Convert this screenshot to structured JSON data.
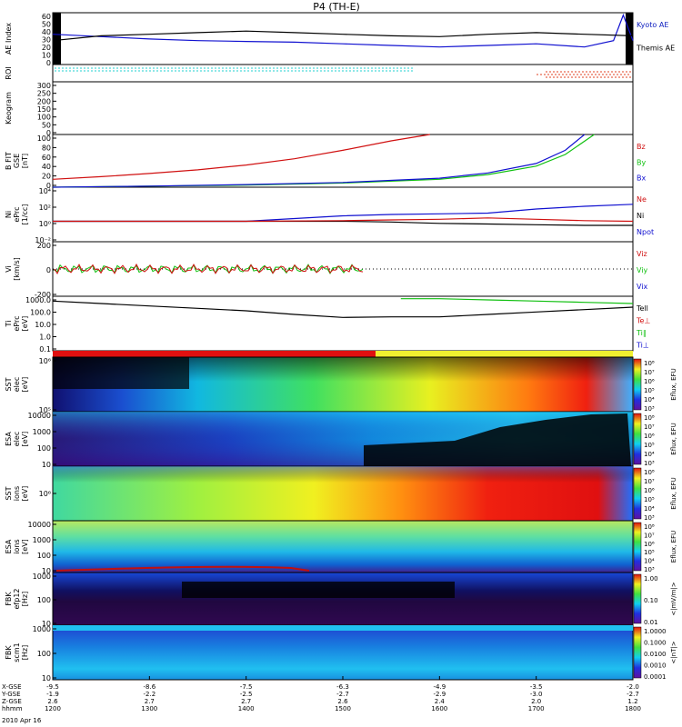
{
  "title": "P4 (TH-E)",
  "colors": {
    "kyoto": "#1020c0",
    "themis": "#000000",
    "red": "#d01010",
    "green": "#10c010",
    "blue": "#1010d0"
  },
  "panels": [
    {
      "id": "ae",
      "ylabel": [
        "AE Index"
      ],
      "ticks": [
        "60",
        "50",
        "40",
        "30",
        "20",
        "10",
        "0"
      ],
      "legend": [
        {
          "text": "Kyoto AE",
          "color": "#1020c0"
        },
        {
          "text": "Themis AE",
          "color": "#000000"
        }
      ]
    },
    {
      "id": "roi",
      "ylabel": [
        "ROI"
      ],
      "ticks": [],
      "legend": []
    },
    {
      "id": "keogram",
      "ylabel": [
        "Keogram"
      ],
      "ticks": [
        "300",
        "250",
        "200",
        "150",
        "100",
        "50",
        "0"
      ],
      "legend": []
    },
    {
      "id": "bfgm",
      "ylabel": [
        "B FIT",
        "GSE",
        "[nT]"
      ],
      "ticks": [
        "100",
        "80",
        "60",
        "40",
        "20",
        "0"
      ],
      "legend": [
        {
          "text": "Bz",
          "color": "#d01010"
        },
        {
          "text": "By",
          "color": "#10c010"
        },
        {
          "text": "Bx",
          "color": "#1010d0"
        }
      ]
    },
    {
      "id": "ni",
      "ylabel": [
        "Ni",
        "ePrc",
        "[1/cc]"
      ],
      "ticks": [
        "10⁴",
        "10²",
        "10⁰",
        "10⁻²"
      ],
      "legend": [
        {
          "text": "Ne",
          "color": "#d01010"
        },
        {
          "text": "Ni",
          "color": "#000000"
        },
        {
          "text": "Npot",
          "color": "#1010d0"
        }
      ]
    },
    {
      "id": "vi",
      "ylabel": [
        "Vi",
        "[km/s]"
      ],
      "ticks": [
        "200",
        "0",
        "-200"
      ],
      "legend": [
        {
          "text": "Viz",
          "color": "#d01010"
        },
        {
          "text": "Viy",
          "color": "#10c010"
        },
        {
          "text": "Vix",
          "color": "#1010d0"
        }
      ]
    },
    {
      "id": "ti",
      "ylabel": [
        "Ti",
        "ePrc",
        "[eV]"
      ],
      "ticks": [
        "1000.0",
        "100.0",
        "10.0",
        "1.0",
        "0.1"
      ],
      "legend": [
        {
          "text": "Tell",
          "color": "#000000"
        },
        {
          "text": "Te⊥",
          "color": "#d01010"
        },
        {
          "text": "Ti∥",
          "color": "#10c010"
        },
        {
          "text": "Ti⊥",
          "color": "#1010d0"
        }
      ]
    },
    {
      "id": "sst_e",
      "ylabel": [
        "SST",
        "elec",
        "[eV]"
      ],
      "ticks": [
        "10⁶",
        "10⁵"
      ],
      "cbar": [
        "10⁸",
        "10⁷",
        "10⁶",
        "10⁵",
        "10⁴",
        "10³"
      ],
      "cbar_label": "Eflux, EFU"
    },
    {
      "id": "esa_e",
      "ylabel": [
        "ESA",
        "elec",
        "[eV]"
      ],
      "ticks": [
        "10000",
        "1000",
        "100",
        "10"
      ],
      "cbar": [
        "10⁸",
        "10⁷",
        "10⁶",
        "10⁵",
        "10⁴",
        "10³"
      ],
      "cbar_label": "Eflux, EFU"
    },
    {
      "id": "sst_i",
      "ylabel": [
        "SST",
        "ions",
        "[eV]"
      ],
      "ticks": [
        "10⁶"
      ],
      "cbar": [
        "10⁸",
        "10⁷",
        "10⁶",
        "10⁵",
        "10⁴",
        "10³"
      ],
      "cbar_label": "Eflux, EFU"
    },
    {
      "id": "esa_i",
      "ylabel": [
        "ESA",
        "ions",
        "[eV]"
      ],
      "ticks": [
        "10000",
        "1000",
        "100",
        "10"
      ],
      "cbar": [
        "10⁸",
        "10⁷",
        "10⁶",
        "10⁵",
        "10⁴",
        "10³"
      ],
      "cbar_label": "Eflux, EFU"
    },
    {
      "id": "fbk_e",
      "ylabel": [
        "FBK",
        "efp12",
        "[Hz]"
      ],
      "ticks": [
        "1000",
        "100",
        "10"
      ],
      "cbar": [
        "1.00",
        "0.10",
        "0.01"
      ],
      "cbar_label": "<|mV/m|>"
    },
    {
      "id": "fbk_b",
      "ylabel": [
        "FBK",
        "scm1",
        "[Hz]"
      ],
      "ticks": [
        "1000",
        "100",
        "10"
      ],
      "cbar": [
        "1.0000",
        "0.1000",
        "0.0100",
        "0.0010",
        "0.0001"
      ],
      "cbar_label": "<|nT|>"
    }
  ],
  "xaxis": {
    "row_labels": [
      "X-GSE",
      "Y-GSE",
      "Z-GSE",
      "hhmm"
    ],
    "date": "2010 Apr 16",
    "columns": [
      [
        "-9.5",
        "-1.9",
        "2.6",
        "1200"
      ],
      [
        "-8.6",
        "-2.2",
        "2.7",
        "1300"
      ],
      [
        "-7.5",
        "-2.5",
        "2.7",
        "1400"
      ],
      [
        "-6.3",
        "-2.7",
        "2.6",
        "1500"
      ],
      [
        "-4.9",
        "-2.9",
        "2.4",
        "1600"
      ],
      [
        "-3.5",
        "-3.0",
        "2.0",
        "1700"
      ],
      [
        "-2.0",
        "-2.7",
        "1.2",
        "1800"
      ]
    ]
  },
  "chart_data": {
    "type": "line",
    "time_range": [
      "1200",
      "1800"
    ],
    "series": [
      {
        "name": "Kyoto AE",
        "panel": "ae",
        "x": [
          12.0,
          12.5,
          13.0,
          13.5,
          14.0,
          14.5,
          15.0,
          15.5,
          16.0,
          16.5,
          17.0,
          17.5,
          17.8,
          17.9,
          18.0
        ],
        "y": [
          38,
          35,
          32,
          30,
          29,
          28,
          26,
          24,
          22,
          24,
          26,
          22,
          30,
          62,
          30
        ]
      },
      {
        "name": "Themis AE",
        "panel": "ae",
        "x": [
          12.0,
          12.5,
          13.0,
          13.5,
          14.0,
          14.5,
          15.0,
          15.5,
          16.0,
          16.5,
          17.0,
          17.5,
          18.0
        ],
        "y": [
          30,
          36,
          38,
          40,
          42,
          40,
          38,
          36,
          35,
          38,
          40,
          38,
          36
        ]
      },
      {
        "name": "Bz",
        "panel": "bfgm",
        "x": [
          12.0,
          12.5,
          13.0,
          13.5,
          14.0,
          14.5,
          15.0,
          15.5,
          15.9
        ],
        "y": [
          15,
          20,
          26,
          33,
          42,
          54,
          70,
          88,
          100
        ]
      },
      {
        "name": "By",
        "panel": "bfgm",
        "x": [
          12.0,
          13.0,
          14.0,
          15.0,
          16.0,
          16.5,
          17.0,
          17.3,
          17.6
        ],
        "y": [
          0,
          2,
          4,
          8,
          15,
          24,
          40,
          62,
          100
        ]
      },
      {
        "name": "Bx",
        "panel": "bfgm",
        "x": [
          12.0,
          13.0,
          14.0,
          15.0,
          16.0,
          16.5,
          17.0,
          17.3,
          17.5
        ],
        "y": [
          0,
          2,
          5,
          9,
          17,
          27,
          45,
          70,
          100
        ]
      },
      {
        "name": "Npot",
        "panel": "ni",
        "x": [
          12.0,
          13.0,
          14.0,
          14.5,
          15.0,
          15.5,
          16.0,
          16.5,
          17.0,
          17.5,
          18.0
        ],
        "y": [
          0,
          0,
          0,
          0.4,
          0.8,
          1.0,
          1.1,
          1.2,
          1.8,
          2.2,
          2.5
        ]
      },
      {
        "name": "Ni",
        "panel": "ni",
        "x": [
          12.0,
          13.0,
          14.0,
          15.0,
          15.5,
          16.0,
          16.5,
          17.0,
          17.5,
          18.0
        ],
        "y": [
          0,
          0,
          0,
          0,
          -0.1,
          -0.3,
          -0.4,
          -0.5,
          -0.6,
          -0.6
        ]
      },
      {
        "name": "Ne",
        "panel": "ni",
        "x": [
          12.0,
          13.0,
          14.0,
          15.0,
          15.5,
          16.0,
          16.5,
          17.0,
          17.5,
          18.0
        ],
        "y": [
          0,
          0,
          0,
          0.1,
          0.2,
          0.3,
          0.5,
          0.3,
          0.1,
          0
        ]
      },
      {
        "name": "Tell",
        "panel": "ti",
        "x": [
          12.0,
          12.5,
          13.0,
          13.5,
          14.0,
          14.5,
          15.0,
          15.5,
          16.0,
          16.5,
          17.0,
          17.5,
          18.0
        ],
        "y": [
          3.1,
          2.9,
          2.7,
          2.5,
          2.3,
          2.0,
          1.75,
          1.8,
          1.8,
          2.0,
          2.2,
          2.4,
          2.6
        ]
      },
      {
        "name": "Ti∥",
        "panel": "ti",
        "x": [
          15.6,
          16.0,
          16.5,
          17.0,
          17.5,
          18.0
        ],
        "y": [
          3.3,
          3.3,
          3.2,
          3.1,
          3.0,
          2.9
        ]
      }
    ]
  }
}
